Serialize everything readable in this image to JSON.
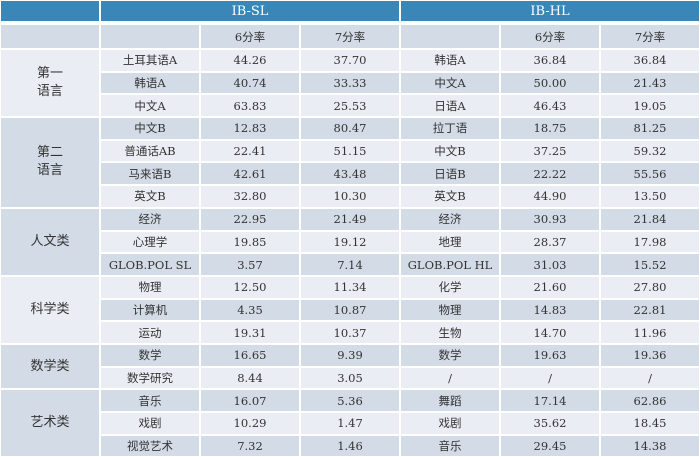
{
  "header": {
    "sl_title": "IB-SL",
    "hl_title": "IB-HL"
  },
  "subheader": {
    "col6": "6分率",
    "col7": "7分率"
  },
  "groups": [
    {
      "label": "第一\n语言",
      "shade": "light",
      "rows": 3
    },
    {
      "label": "第二\n语言",
      "shade": "dark",
      "rows": 4
    },
    {
      "label": "人文类",
      "shade": "dark",
      "rows": 3
    },
    {
      "label": "科学类",
      "shade": "light",
      "rows": 3
    },
    {
      "label": "数学类",
      "shade": "dark",
      "rows": 2
    },
    {
      "label": "艺术类",
      "shade": "dark",
      "rows": 3
    }
  ],
  "rows": [
    {
      "sl_subject": "土耳其语A",
      "sl6": "44.26",
      "sl7": "37.70",
      "hl_subject": "韩语A",
      "hl6": "36.84",
      "hl7": "36.84"
    },
    {
      "sl_subject": "韩语A",
      "sl6": "40.74",
      "sl7": "33.33",
      "hl_subject": "中文A",
      "hl6": "50.00",
      "hl7": "21.43"
    },
    {
      "sl_subject": "中文A",
      "sl6": "63.83",
      "sl7": "25.53",
      "hl_subject": "日语A",
      "hl6": "46.43",
      "hl7": "19.05"
    },
    {
      "sl_subject": "中文B",
      "sl6": "12.83",
      "sl7": "80.47",
      "hl_subject": "拉丁语",
      "hl6": "18.75",
      "hl7": "81.25"
    },
    {
      "sl_subject": "普通话AB",
      "sl6": "22.41",
      "sl7": "51.15",
      "hl_subject": "中文B",
      "hl6": "37.25",
      "hl7": "59.32"
    },
    {
      "sl_subject": "马来语B",
      "sl6": "42.61",
      "sl7": "43.48",
      "hl_subject": "日语B",
      "hl6": "22.22",
      "hl7": "55.56"
    },
    {
      "sl_subject": "英文B",
      "sl6": "32.80",
      "sl7": "10.30",
      "hl_subject": "英文B",
      "hl6": "44.90",
      "hl7": "13.50"
    },
    {
      "sl_subject": "经济",
      "sl6": "22.95",
      "sl7": "21.49",
      "hl_subject": "经济",
      "hl6": "30.93",
      "hl7": "21.84"
    },
    {
      "sl_subject": "心理学",
      "sl6": "19.85",
      "sl7": "19.12",
      "hl_subject": "地理",
      "hl6": "28.37",
      "hl7": "17.98"
    },
    {
      "sl_subject": "GLOB.POL SL",
      "sl6": "3.57",
      "sl7": "7.14",
      "hl_subject": "GLOB.POL HL",
      "hl6": "31.03",
      "hl7": "15.52"
    },
    {
      "sl_subject": "物理",
      "sl6": "12.50",
      "sl7": "11.34",
      "hl_subject": "化学",
      "hl6": "21.60",
      "hl7": "27.80"
    },
    {
      "sl_subject": "计算机",
      "sl6": "4.35",
      "sl7": "10.87",
      "hl_subject": "物理",
      "hl6": "14.83",
      "hl7": "22.81"
    },
    {
      "sl_subject": "运动",
      "sl6": "19.31",
      "sl7": "10.37",
      "hl_subject": "生物",
      "hl6": "14.70",
      "hl7": "11.96"
    },
    {
      "sl_subject": "数学",
      "sl6": "16.65",
      "sl7": "9.39",
      "hl_subject": "数学",
      "hl6": "19.63",
      "hl7": "19.36"
    },
    {
      "sl_subject": "数学研究",
      "sl6": "8.44",
      "sl7": "3.05",
      "hl_subject": "/",
      "hl6": "/",
      "hl7": "/"
    },
    {
      "sl_subject": "音乐",
      "sl6": "16.07",
      "sl7": "5.36",
      "hl_subject": "舞蹈",
      "hl6": "17.14",
      "hl7": "62.86"
    },
    {
      "sl_subject": "戏剧",
      "sl6": "10.29",
      "sl7": "1.47",
      "hl_subject": "戏剧",
      "hl6": "35.62",
      "hl7": "18.45"
    },
    {
      "sl_subject": "视觉艺术",
      "sl6": "7.32",
      "sl7": "1.46",
      "hl_subject": "音乐",
      "hl6": "29.45",
      "hl7": "14.38"
    }
  ],
  "colors": {
    "header": "#3a86b6",
    "row_light": "#eaeef4",
    "row_dark": "#d3dbe6"
  }
}
